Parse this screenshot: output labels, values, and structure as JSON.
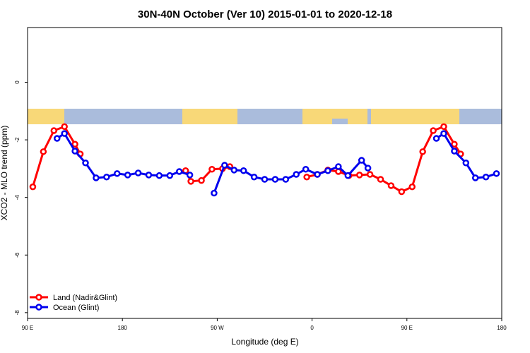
{
  "chart_data": {
    "type": "line",
    "title": "30N-40N October (Ver 10)   2015-01-01 to 2020-12-18",
    "x_label": "Longitude (deg E)",
    "y_label": "XCO2 - MLO trend (ppm)",
    "xlim": [
      90,
      540
    ],
    "xticks": [
      {
        "value": 90,
        "label": "90 E"
      },
      180,
      {
        "value": 270,
        "label": "90 W"
      },
      {
        "value": 360,
        "label": "0"
      },
      {
        "value": 450,
        "label": "90 E"
      },
      {
        "value": 540,
        "label": "180"
      }
    ],
    "ylim": [
      -8.2,
      1.9
    ],
    "yticks": [
      -8,
      -6,
      -4,
      -2,
      0
    ],
    "legend": "bottom-left",
    "series": [
      {
        "name": "Land (Nadir&Glint)",
        "color": "#ff0000",
        "x": [
          95,
          105,
          115,
          125,
          135,
          140,
          190,
          240,
          245,
          255,
          265,
          275,
          282,
          320,
          355,
          365,
          375,
          385,
          395,
          405,
          415,
          425,
          435,
          445,
          455,
          465,
          475,
          485,
          495,
          501
        ],
        "values": [
          -3.63,
          -2.41,
          -1.68,
          -1.54,
          -2.15,
          -2.49,
          null,
          -3.07,
          -3.44,
          -3.41,
          -3.02,
          -3.0,
          -2.93,
          null,
          -3.29,
          -3.2,
          -3.05,
          -3.1,
          -3.24,
          -3.22,
          -3.2,
          -3.37,
          -3.59,
          -3.8,
          -3.63,
          -2.41,
          -1.68,
          -1.54,
          -2.15,
          -2.49
        ]
      },
      {
        "name": "Ocean (Glint)",
        "color": "#0000ee",
        "x": [
          118,
          125,
          135,
          145,
          155,
          165,
          175,
          185,
          195,
          205,
          215,
          225,
          234,
          244,
          255,
          267,
          277,
          286,
          295,
          305,
          315,
          325,
          335,
          345,
          354,
          365,
          375,
          385,
          394,
          407,
          413,
          450,
          478,
          485,
          495,
          506,
          515,
          525,
          535
        ],
        "values": [
          -1.95,
          -1.78,
          -2.39,
          -2.8,
          -3.32,
          -3.29,
          -3.17,
          -3.22,
          -3.15,
          -3.22,
          -3.24,
          -3.24,
          -3.1,
          -3.22,
          null,
          -3.85,
          -2.88,
          -3.05,
          -3.07,
          -3.29,
          -3.37,
          -3.37,
          -3.37,
          -3.2,
          -3.02,
          -3.2,
          -3.07,
          -2.93,
          -3.24,
          -2.71,
          -2.98,
          null,
          -1.95,
          -1.78,
          -2.39,
          -2.8,
          -3.32,
          -3.29,
          -3.17
        ]
      }
    ]
  }
}
